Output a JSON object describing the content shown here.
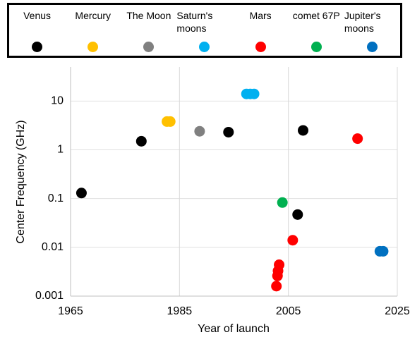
{
  "chart_data": {
    "type": "scatter",
    "x_label": "Year of launch",
    "y_label": "Center Frequency (GHz)",
    "log_y": true,
    "grid": true,
    "xlim": [
      1965,
      2025
    ],
    "xticks": [
      1965,
      1985,
      2005,
      2025
    ],
    "ylim": [
      0.001,
      50
    ],
    "yticks": [
      0.001,
      0.01,
      0.1,
      1,
      10
    ],
    "legend": "top",
    "series": [
      {
        "name": "Venus",
        "color": "#000000",
        "x": [
          1967,
          1978,
          1994,
          2007.7,
          2006.7
        ],
        "values": [
          0.13,
          1.5,
          2.3,
          2.5,
          0.047
        ]
      },
      {
        "name": "Mercury",
        "color": "#FFC000",
        "x": [
          1982.7,
          1983.3
        ],
        "values": [
          3.8,
          3.8
        ]
      },
      {
        "name": "The Moon",
        "color": "#808080",
        "x": [
          1988.7
        ],
        "values": [
          2.4
        ]
      },
      {
        "name": "Saturn's moons",
        "color": "#00B0F0",
        "x": [
          1997.3,
          1998,
          1998.7
        ],
        "values": [
          14,
          14,
          14
        ]
      },
      {
        "name": "Mars",
        "color": "#FF0000",
        "x": [
          2017.7,
          2005.8,
          2003.3,
          2003.1,
          2003,
          2002.8
        ],
        "values": [
          1.7,
          0.014,
          0.0044,
          0.0033,
          0.0026,
          0.0016
        ]
      },
      {
        "name": "comet 67P",
        "color": "#00B050",
        "x": [
          2003.9
        ],
        "values": [
          0.083
        ]
      },
      {
        "name": "Jupiter's moons",
        "color": "#0070C0",
        "x": [
          2021.8,
          2022.4
        ],
        "values": [
          0.0083,
          0.0083
        ]
      }
    ]
  }
}
